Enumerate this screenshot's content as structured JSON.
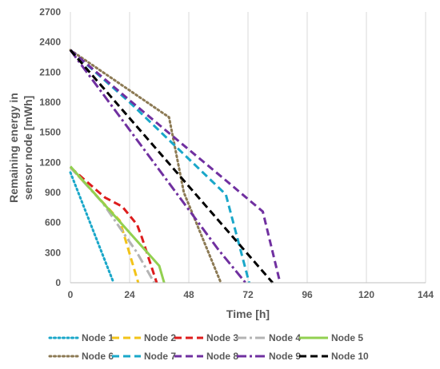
{
  "chart_data": {
    "type": "line",
    "xlabel": "Time [h]",
    "ylabel_lines": [
      "Remaining energy in",
      "sensor node [mWh]"
    ],
    "xlim": [
      0,
      144
    ],
    "ylim": [
      0,
      2700
    ],
    "x_ticks": [
      0,
      24,
      48,
      72,
      96,
      120,
      144
    ],
    "y_ticks": [
      0,
      300,
      600,
      900,
      1200,
      1500,
      1800,
      2100,
      2400,
      2700
    ],
    "grid": "vertical",
    "legend_position": "bottom",
    "series": [
      {
        "name": "Node 1",
        "color": "#1aa7c9",
        "dash": "dot",
        "points": [
          [
            0,
            1100
          ],
          [
            17.5,
            0
          ]
        ]
      },
      {
        "name": "Node 2",
        "color": "#f2c318",
        "dash": "dash",
        "points": [
          [
            0,
            1150
          ],
          [
            20,
            620
          ],
          [
            27.5,
            0
          ]
        ]
      },
      {
        "name": "Node 3",
        "color": "#dd1c1c",
        "dash": "dash",
        "points": [
          [
            0,
            1150
          ],
          [
            14,
            850
          ],
          [
            21,
            760
          ],
          [
            27,
            580
          ],
          [
            29,
            450
          ],
          [
            35,
            0
          ]
        ]
      },
      {
        "name": "Node 4",
        "color": "#b4b4b4",
        "dash": "dashdot",
        "points": [
          [
            0,
            1150
          ],
          [
            13,
            800
          ],
          [
            27,
            300
          ],
          [
            34,
            0
          ]
        ]
      },
      {
        "name": "Node 5",
        "color": "#92d050",
        "dash": "solid",
        "points": [
          [
            0,
            1160
          ],
          [
            36,
            170
          ],
          [
            38,
            0
          ]
        ]
      },
      {
        "name": "Node 6",
        "color": "#8c7a54",
        "dash": "dot",
        "points": [
          [
            0,
            2320
          ],
          [
            40,
            1650
          ],
          [
            46,
            900
          ],
          [
            61,
            0
          ]
        ]
      },
      {
        "name": "Node 7",
        "color": "#1aa7c9",
        "dash": "dash",
        "points": [
          [
            0,
            2320
          ],
          [
            24,
            1800
          ],
          [
            63,
            880
          ],
          [
            72.5,
            0
          ]
        ]
      },
      {
        "name": "Node 8",
        "color": "#7030a0",
        "dash": "dash",
        "points": [
          [
            0,
            2320
          ],
          [
            24,
            1820
          ],
          [
            64,
            1000
          ],
          [
            78,
            710
          ],
          [
            85,
            0
          ]
        ]
      },
      {
        "name": "Node 9",
        "color": "#7030a0",
        "dash": "dashdot",
        "points": [
          [
            0,
            2320
          ],
          [
            60,
            330
          ],
          [
            71,
            0
          ]
        ]
      },
      {
        "name": "Node 10",
        "color": "#000000",
        "dash": "dash",
        "points": [
          [
            0,
            2320
          ],
          [
            82,
            0
          ]
        ]
      }
    ]
  }
}
